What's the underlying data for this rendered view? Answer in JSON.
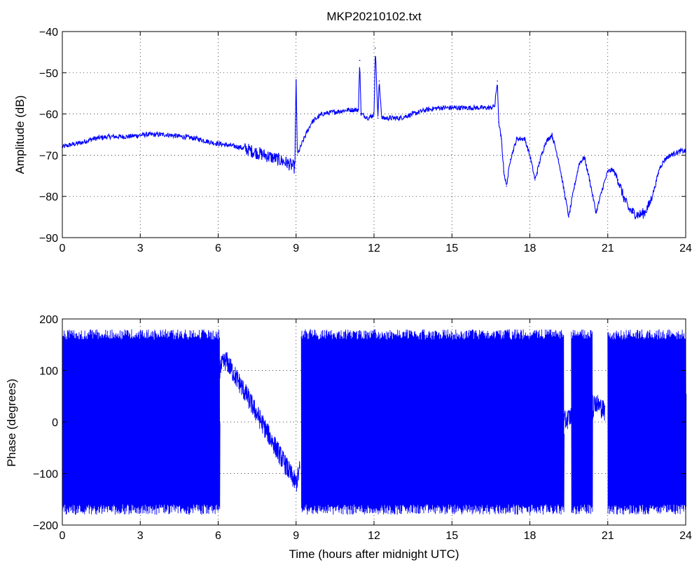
{
  "figure": {
    "title": "MKP20210102.txt",
    "line_color": "#0000ff",
    "grid": "dotted"
  },
  "chart_data": [
    {
      "type": "line",
      "title": "MKP20210102.txt",
      "xlabel": "",
      "ylabel": "Amplitude (dB)",
      "xlim": [
        0,
        24
      ],
      "ylim": [
        -90,
        -40
      ],
      "xticks": [
        0,
        3,
        6,
        9,
        12,
        15,
        18,
        21,
        24
      ],
      "xtick_labels": [
        "0",
        "3",
        "6",
        "9",
        "12",
        "15",
        "18",
        "21",
        "24"
      ],
      "yticks": [
        -90,
        -80,
        -70,
        -60,
        -50,
        -40
      ],
      "ytick_labels": [
        "−90",
        "−80",
        "−70",
        "−60",
        "−50",
        "−40"
      ],
      "grid": true,
      "series": [
        {
          "color": "#0000ff",
          "x": [
            0,
            0.3,
            0.7,
            1.2,
            1.8,
            2.5,
            3.2,
            4.0,
            4.6,
            5.2,
            5.8,
            6.3,
            6.8,
            7.3,
            7.8,
            8.3,
            8.7,
            8.95,
            9.0,
            9.05,
            9.3,
            9.6,
            10.0,
            10.5,
            11.0,
            11.4,
            11.45,
            11.5,
            11.8,
            12.0,
            12.05,
            12.15,
            12.2,
            12.3,
            12.6,
            13.0,
            13.5,
            14.0,
            14.5,
            15.0,
            15.5,
            16.0,
            16.5,
            16.65,
            16.75,
            16.8,
            16.9,
            17.0,
            17.1,
            17.25,
            17.5,
            17.8,
            18.0,
            18.2,
            18.4,
            18.6,
            18.85,
            19.1,
            19.3,
            19.5,
            19.7,
            19.9,
            20.1,
            20.3,
            20.55,
            20.8,
            21.0,
            21.2,
            21.4,
            21.6,
            21.8,
            22.0,
            22.2,
            22.4,
            22.6,
            22.8,
            23.0,
            23.2,
            23.4,
            23.6,
            23.8,
            24.0
          ],
          "y": [
            -68,
            -67.5,
            -67,
            -66,
            -65.5,
            -65.5,
            -65,
            -65,
            -65.5,
            -66,
            -67,
            -67.5,
            -68,
            -69,
            -70,
            -71,
            -72,
            -73,
            -52,
            -70,
            -66,
            -62,
            -60,
            -59.5,
            -59,
            -59,
            -47,
            -60,
            -61,
            -60,
            -44,
            -61,
            -52,
            -61,
            -61,
            -61,
            -60,
            -59,
            -58.5,
            -58.5,
            -58.5,
            -58.5,
            -58.5,
            -58,
            -52,
            -62,
            -66,
            -74,
            -77.5,
            -71,
            -66,
            -66,
            -70,
            -76,
            -71,
            -67,
            -65,
            -71,
            -78,
            -85,
            -78,
            -72,
            -70.5,
            -76,
            -84,
            -78,
            -74,
            -73.5,
            -76,
            -80,
            -83,
            -84,
            -84.5,
            -84,
            -82,
            -78,
            -73,
            -71,
            -70,
            -69.5,
            -69,
            -69
          ]
        }
      ]
    },
    {
      "type": "line",
      "title": "",
      "xlabel": "Time (hours after midnight UTC)",
      "ylabel": "Phase (degrees)",
      "xlim": [
        0,
        24
      ],
      "ylim": [
        -200,
        200
      ],
      "xticks": [
        0,
        3,
        6,
        9,
        12,
        15,
        18,
        21,
        24
      ],
      "xtick_labels": [
        "0",
        "3",
        "6",
        "9",
        "12",
        "15",
        "18",
        "21",
        "24"
      ],
      "yticks": [
        -200,
        -100,
        0,
        100,
        200
      ],
      "ytick_labels": [
        "−200",
        "−100",
        "0",
        "100",
        "200"
      ],
      "grid": true,
      "series": [
        {
          "color": "#0000ff",
          "description_free": true,
          "segments": [
            {
              "kind": "wrapped",
              "x": [
                0,
                5.0
              ],
              "y": [
                -180,
                180
              ]
            },
            {
              "kind": "wrapped",
              "x": [
                5.0,
                6.05
              ],
              "y": [
                -180,
                180
              ]
            },
            {
              "kind": "drift",
              "x": [
                6.0,
                6.3,
                7.0,
                8.0,
                9.0,
                9.15
              ],
              "y": [
                100,
                120,
                60,
                -30,
                -120,
                -90
              ]
            },
            {
              "kind": "wrapped",
              "x": [
                9.2,
                19.3
              ],
              "y": [
                -180,
                180
              ]
            },
            {
              "kind": "drift",
              "x": [
                19.3,
                19.8,
                20.2,
                20.5,
                20.9
              ],
              "y": [
                0,
                20,
                -20,
                40,
                20
              ]
            },
            {
              "kind": "wrapped",
              "x": [
                19.6,
                20.4
              ],
              "y": [
                -180,
                180
              ]
            },
            {
              "kind": "wrapped",
              "x": [
                21.0,
                24.0
              ],
              "y": [
                -180,
                180
              ]
            }
          ]
        }
      ]
    }
  ]
}
